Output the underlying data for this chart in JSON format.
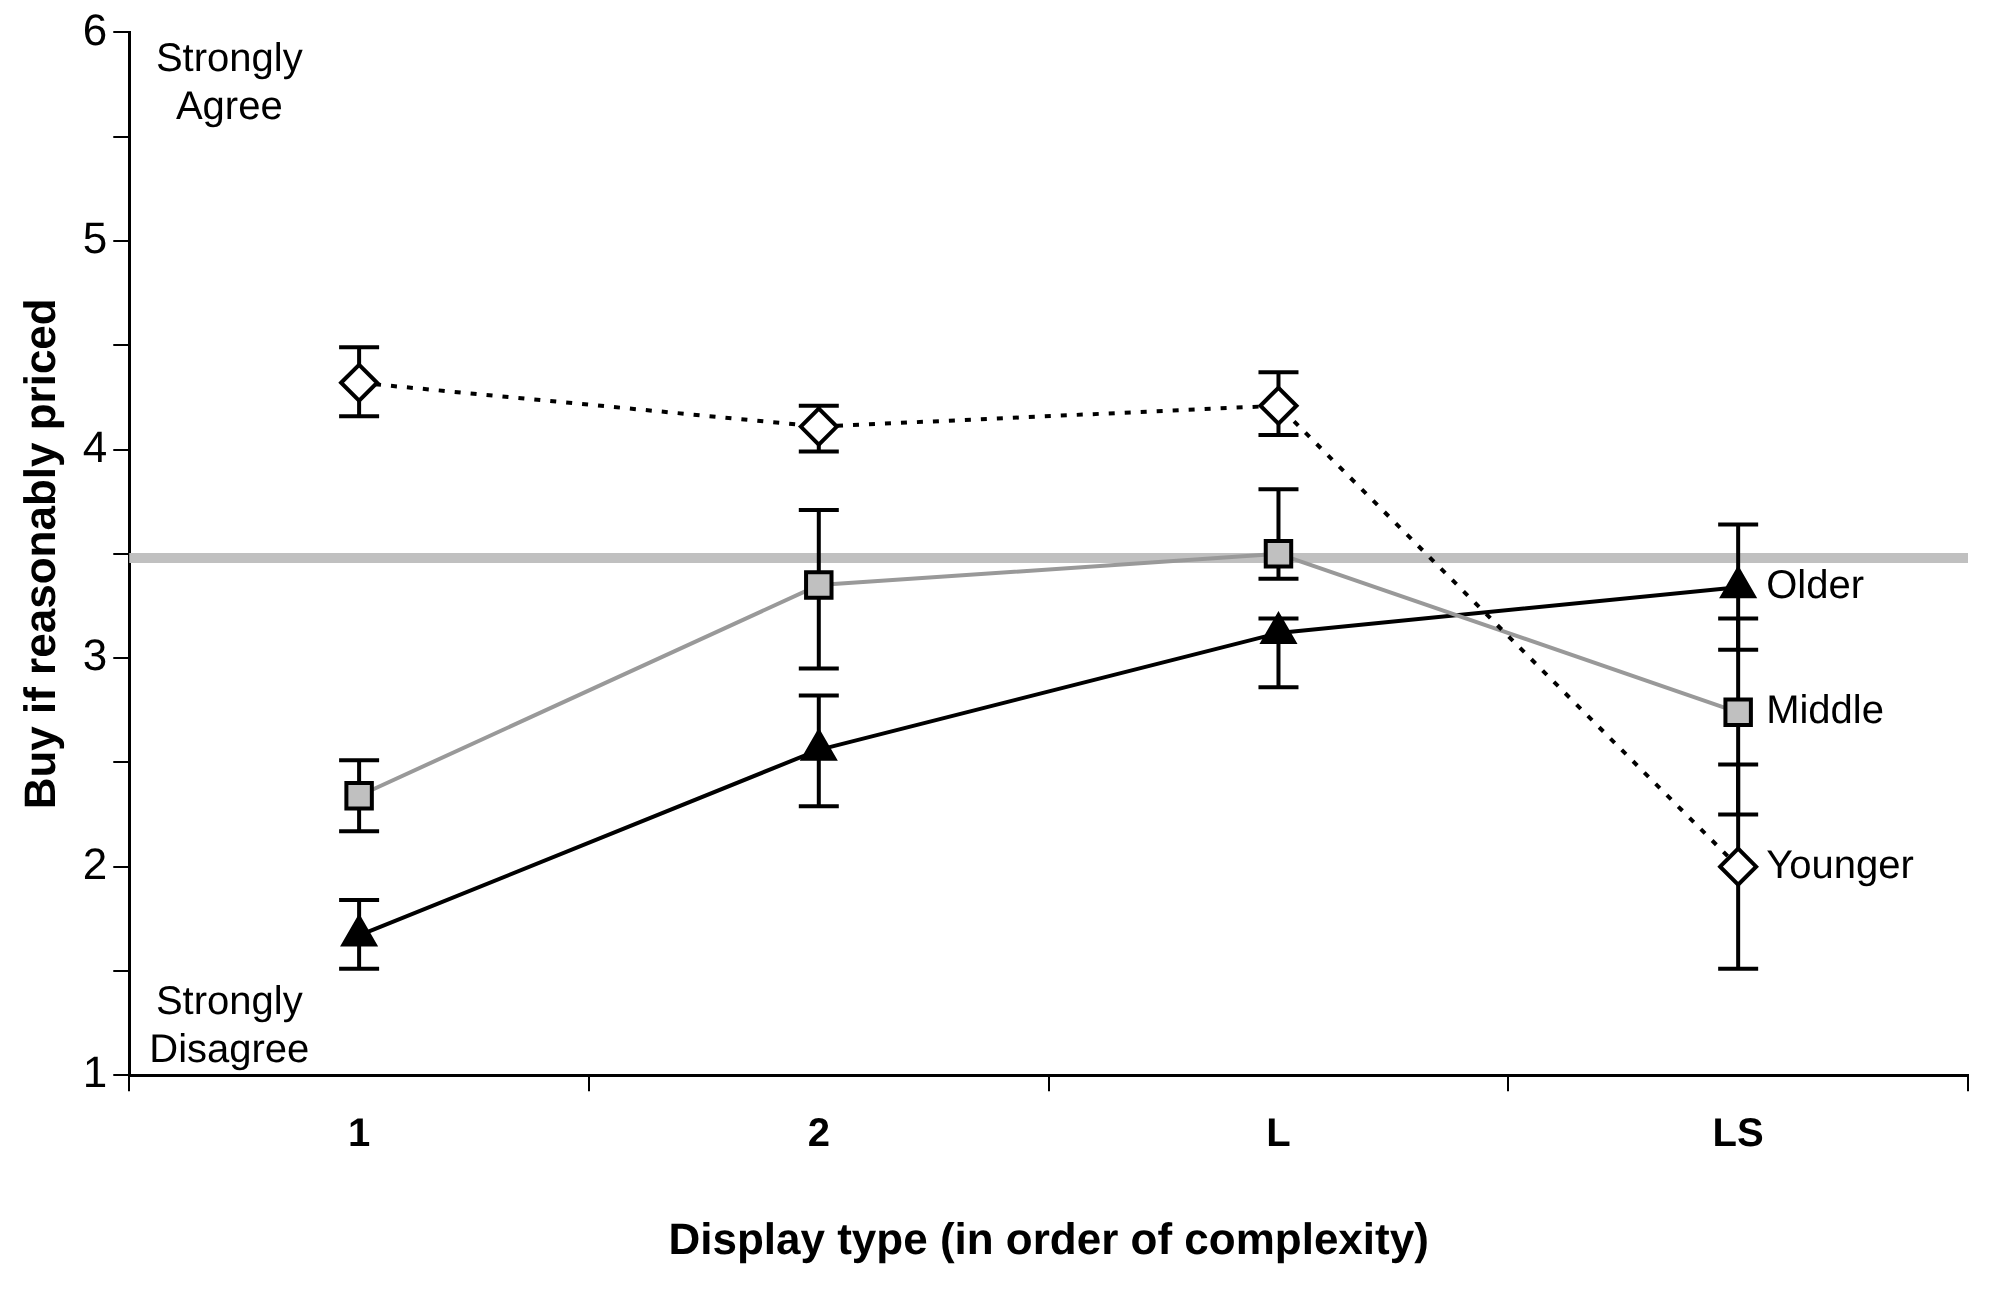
{
  "chart_data": {
    "type": "line",
    "xlabel": "Display type (in order of complexity)",
    "ylabel": "Buy if reasonably priced",
    "categories": [
      "1",
      "2",
      "L",
      "LS"
    ],
    "series": [
      {
        "name": "Younger",
        "color": "#000000",
        "marker": "diamond",
        "line_style": "dotted",
        "values": [
          4.32,
          4.11,
          4.21,
          2.0
        ],
        "errors": [
          [
            4.16,
            4.49
          ],
          [
            3.99,
            4.21
          ],
          [
            4.07,
            4.37
          ],
          [
            1.51,
            2.49
          ]
        ]
      },
      {
        "name": "Middle",
        "color": "#999999",
        "marker": "square",
        "line_style": "solid",
        "values": [
          2.34,
          3.35,
          3.5,
          2.74
        ],
        "errors": [
          [
            2.17,
            2.51
          ],
          [
            2.95,
            3.71
          ],
          [
            3.38,
            3.81
          ],
          [
            2.25,
            3.19
          ]
        ]
      },
      {
        "name": "Older",
        "color": "#000000",
        "marker": "triangle",
        "line_style": "solid",
        "values": [
          1.67,
          2.56,
          3.12,
          3.34
        ],
        "errors": [
          [
            1.51,
            1.84
          ],
          [
            2.29,
            2.82
          ],
          [
            2.86,
            3.19
          ],
          [
            3.04,
            3.64
          ]
        ]
      }
    ],
    "ylim": [
      1,
      6
    ],
    "yticks": [
      1,
      {
        "value": 1.5,
        "label": null
      },
      2,
      {
        "value": 2.5,
        "label": null
      },
      3,
      {
        "value": 3.5,
        "label": null
      },
      4,
      {
        "value": 4.5,
        "label": null
      },
      5,
      {
        "value": 5.5,
        "label": null
      },
      6
    ],
    "ref_lines": [
      {
        "axis": "y",
        "value": 3.48,
        "label": null,
        "color": "#c0c0c0"
      }
    ],
    "annotations": [
      "Strongly Agree",
      "Strongly Disagree"
    ],
    "grid": false,
    "legend": false
  }
}
